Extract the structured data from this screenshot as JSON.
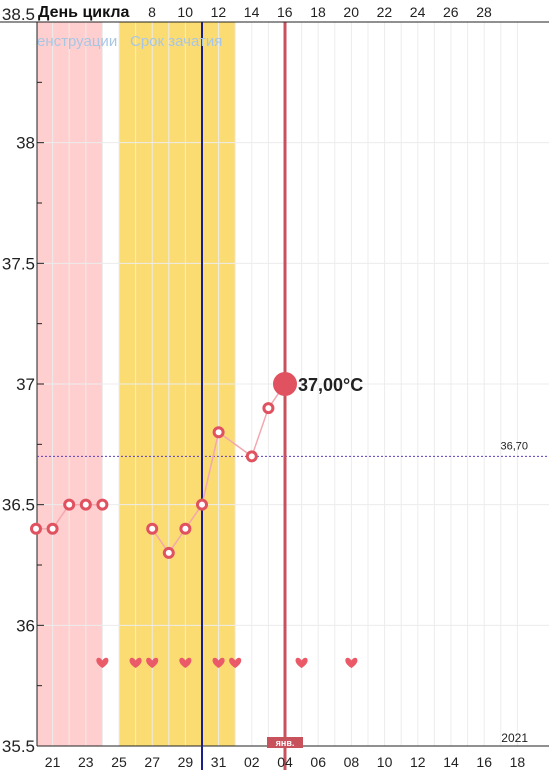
{
  "chart_data": {
    "type": "scatter",
    "header_label": "День цикла",
    "cycle_day_ticks": [
      "8",
      "10",
      "12",
      "14",
      "16",
      "18",
      "20",
      "22",
      "24",
      "26",
      "28"
    ],
    "date_ticks": [
      "21",
      "23",
      "25",
      "27",
      "29",
      "31",
      "02",
      "04",
      "06",
      "08",
      "10",
      "12",
      "14",
      "16",
      "18"
    ],
    "y_ticks": [
      "38.5",
      "38",
      "37.5",
      "37",
      "36.5",
      "36",
      "35.5"
    ],
    "ylim": [
      35.5,
      38.5
    ],
    "legend": [
      "енструации",
      "Срок зачатия"
    ],
    "points": [
      {
        "date": "20",
        "temp": 36.4
      },
      {
        "date": "21",
        "temp": 36.4
      },
      {
        "date": "22",
        "temp": 36.5
      },
      {
        "date": "23",
        "temp": 36.5
      },
      {
        "date": "24",
        "temp": 36.5
      },
      {
        "date": "27",
        "temp": 36.4
      },
      {
        "date": "28",
        "temp": 36.3
      },
      {
        "date": "29",
        "temp": 36.4
      },
      {
        "date": "30",
        "temp": 36.5
      },
      {
        "date": "31",
        "temp": 36.8
      },
      {
        "date": "02",
        "temp": 36.7
      },
      {
        "date": "03",
        "temp": 36.9
      },
      {
        "date": "04",
        "temp": 37.0
      }
    ],
    "heart_dates": [
      "24",
      "26",
      "27",
      "29",
      "31",
      "01",
      "05",
      "08"
    ],
    "coverline_label": "36,70",
    "coverline_value": 36.7,
    "selected_label": "37,00°C",
    "month_label": "янв.",
    "year_label": "2021",
    "colors": {
      "menstruation": "#ffcfcf",
      "fertile": "#fadc73",
      "point": "#e0525f",
      "line": "#f2a8ae",
      "today": "#1a1f8c",
      "selected_line": "#c8525c",
      "coverline": "#5d3fc0",
      "heart": "#ea5a68"
    }
  }
}
